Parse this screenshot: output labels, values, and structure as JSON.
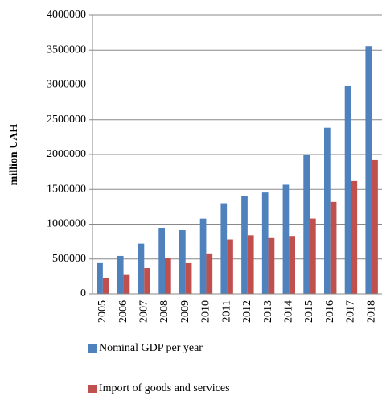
{
  "chart_data": {
    "type": "bar",
    "y_label": "million UAH",
    "categories": [
      "2005",
      "2006",
      "2007",
      "2008",
      "2009",
      "2010",
      "2011",
      "2012",
      "2013",
      "2014",
      "2015",
      "2016",
      "2017",
      "2018"
    ],
    "series": [
      {
        "name": "Nominal GDP per year",
        "color": "#4f81bd",
        "values": [
          441000,
          544000,
          721000,
          948000,
          913000,
          1079000,
          1300000,
          1405000,
          1455000,
          1567000,
          1989000,
          2385000,
          2983000,
          3558000
        ]
      },
      {
        "name": "Import of goods and services",
        "color": "#c0504d",
        "values": [
          230000,
          270000,
          370000,
          520000,
          440000,
          580000,
          780000,
          840000,
          800000,
          830000,
          1080000,
          1320000,
          1620000,
          1920000
        ]
      }
    ],
    "ylim": [
      0,
      4000000
    ],
    "yticks": [
      0,
      500000,
      1000000,
      1500000,
      2000000,
      2500000,
      3000000,
      3500000,
      4000000
    ],
    "grid": true
  }
}
